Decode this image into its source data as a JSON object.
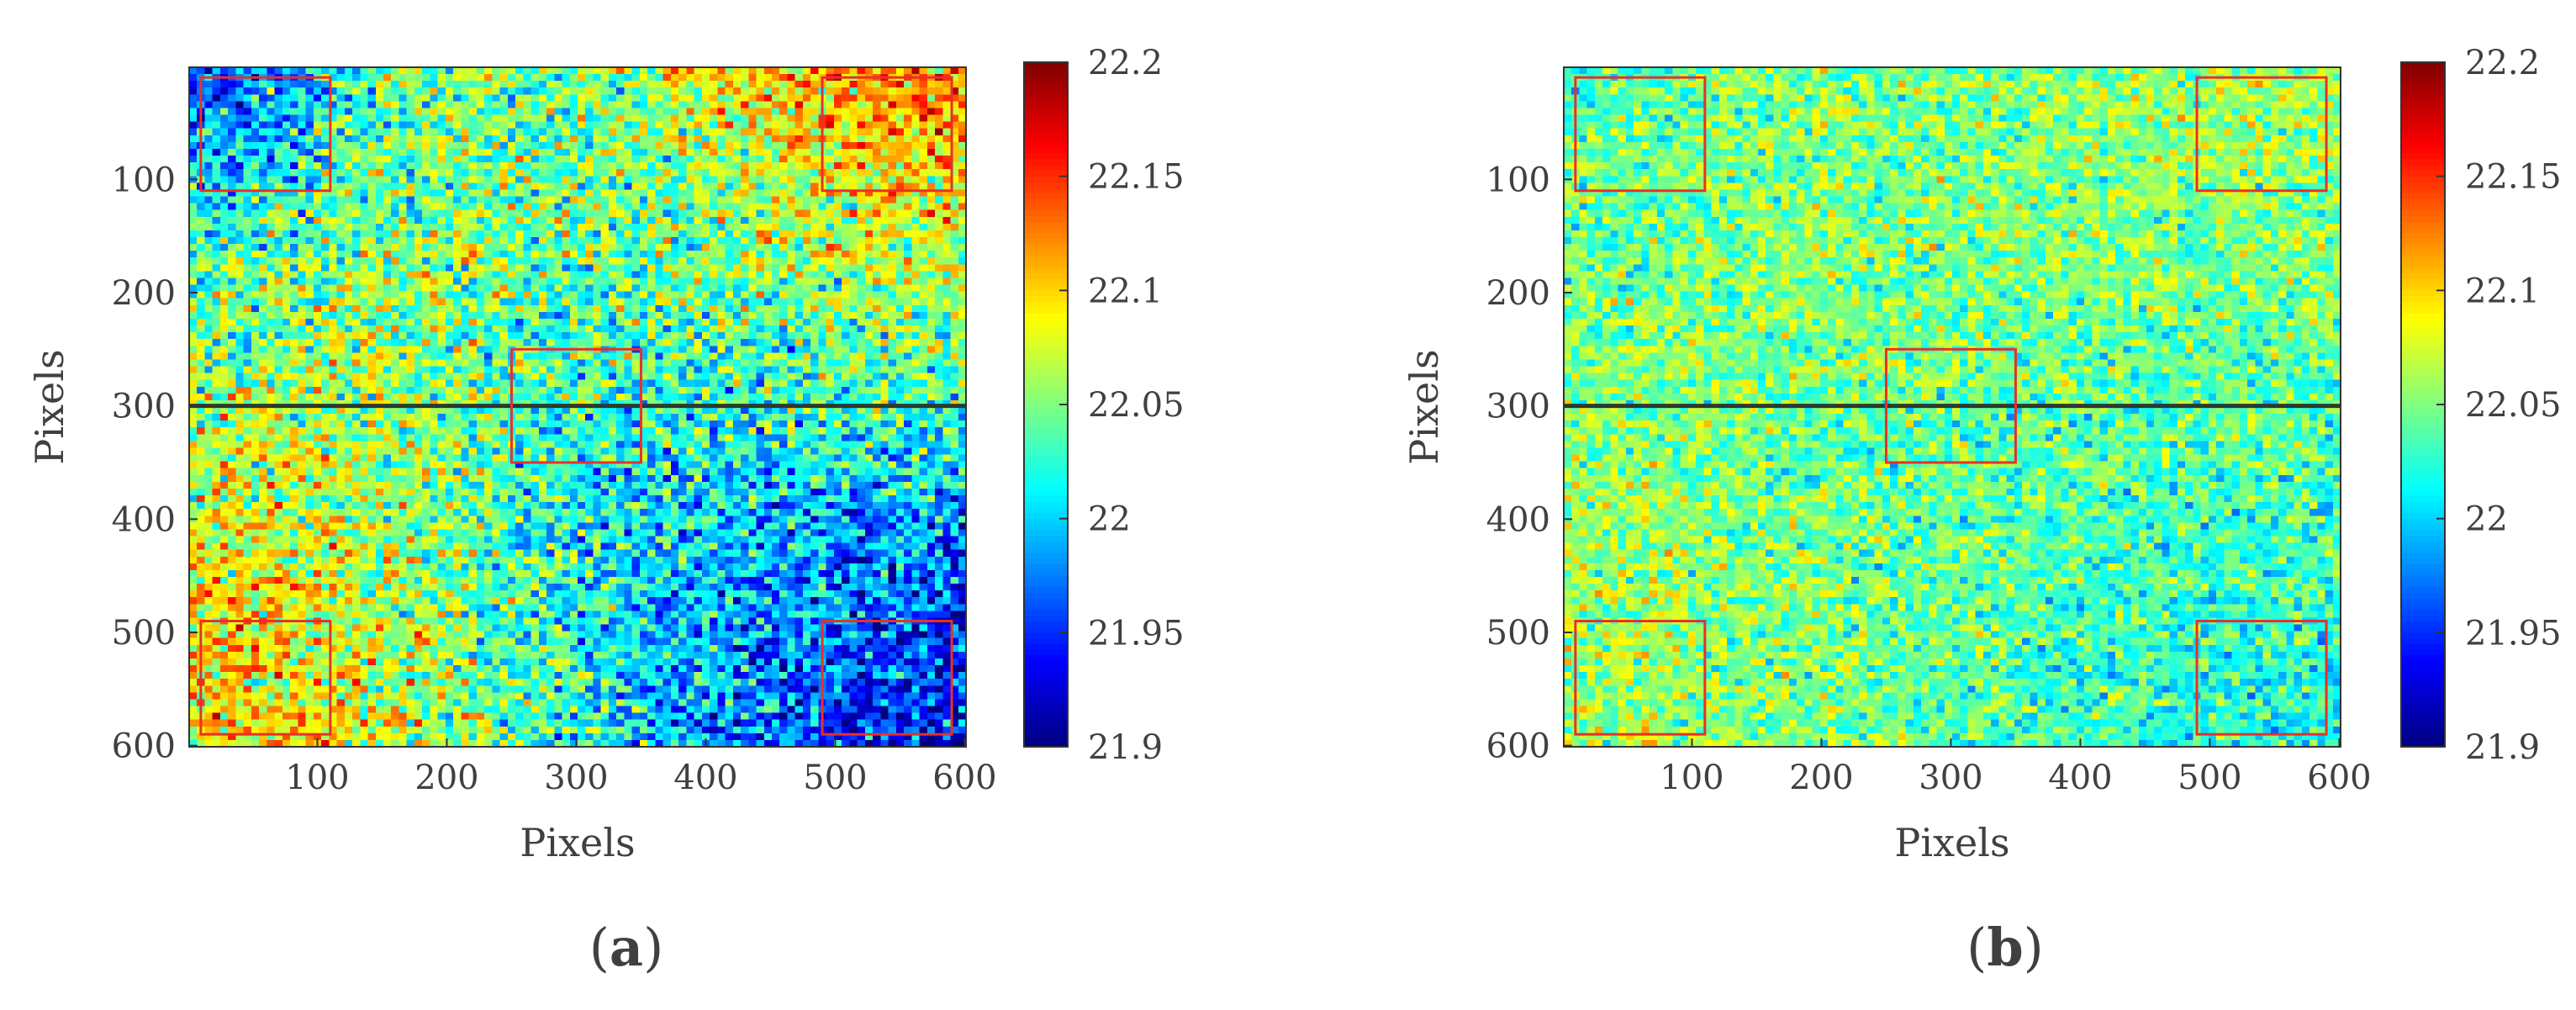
{
  "figure": {
    "panels": [
      {
        "label_open": "(",
        "label": "a",
        "label_close": ")"
      },
      {
        "label_open": "(",
        "label": "b",
        "label_close": ")"
      }
    ]
  },
  "chart_data": [
    {
      "type": "heatmap",
      "panel": "a",
      "title": "",
      "xlabel": "Pixels",
      "ylabel": "Pixels",
      "xlim": [
        1,
        600
      ],
      "ylim": [
        1,
        600
      ],
      "y_reversed": true,
      "xticks": [
        100,
        200,
        300,
        400,
        500,
        600
      ],
      "yticks": [
        100,
        200,
        300,
        400,
        500,
        600
      ],
      "grid": false,
      "colormap": "jet",
      "colorbar": {
        "min": 21.9,
        "max": 22.2,
        "ticks": [
          "21.9",
          "21.95",
          "22",
          "22.05",
          "22.1",
          "22.15",
          "22.2"
        ]
      },
      "approx_grid_values": [
        [
          21.96,
          21.98,
          22.03,
          22.06,
          22.04,
          22.06,
          22.09,
          22.11,
          22.12,
          22.13
        ],
        [
          21.98,
          22.0,
          22.03,
          22.05,
          22.04,
          22.05,
          22.07,
          22.09,
          22.1,
          22.11
        ],
        [
          22.02,
          22.03,
          22.05,
          22.05,
          22.05,
          22.04,
          22.05,
          22.07,
          22.08,
          22.09
        ],
        [
          22.04,
          22.05,
          22.06,
          22.05,
          22.04,
          22.04,
          22.04,
          22.05,
          22.06,
          22.06
        ],
        [
          22.05,
          22.06,
          22.06,
          22.05,
          22.04,
          22.03,
          22.03,
          22.03,
          22.04,
          22.04
        ],
        [
          22.07,
          22.07,
          22.06,
          22.05,
          22.03,
          22.02,
          22.01,
          22.01,
          22.01,
          22.01
        ],
        [
          22.08,
          22.08,
          22.07,
          22.05,
          22.03,
          22.01,
          22.0,
          21.99,
          21.99,
          21.98
        ],
        [
          22.09,
          22.09,
          22.07,
          22.05,
          22.03,
          22.01,
          21.99,
          21.98,
          21.97,
          21.96
        ],
        [
          22.1,
          22.09,
          22.08,
          22.05,
          22.03,
          22.01,
          21.99,
          21.97,
          21.95,
          21.94
        ],
        [
          22.1,
          22.1,
          22.08,
          22.06,
          22.03,
          22.01,
          21.98,
          21.96,
          21.94,
          21.93
        ]
      ],
      "noise_amplitude": 0.05,
      "horizontal_line_y": 300,
      "regions": [
        {
          "x": [
            10,
            110
          ],
          "y": [
            10,
            110
          ]
        },
        {
          "x": [
            490,
            590
          ],
          "y": [
            10,
            110
          ]
        },
        {
          "x": [
            250,
            350
          ],
          "y": [
            250,
            350
          ]
        },
        {
          "x": [
            10,
            110
          ],
          "y": [
            490,
            590
          ]
        },
        {
          "x": [
            490,
            590
          ],
          "y": [
            490,
            590
          ]
        }
      ]
    },
    {
      "type": "heatmap",
      "panel": "b",
      "title": "",
      "xlabel": "Pixels",
      "ylabel": "Pixels",
      "xlim": [
        1,
        600
      ],
      "ylim": [
        1,
        600
      ],
      "y_reversed": true,
      "xticks": [
        100,
        200,
        300,
        400,
        500,
        600
      ],
      "yticks": [
        100,
        200,
        300,
        400,
        500,
        600
      ],
      "grid": false,
      "colormap": "jet",
      "colorbar": {
        "min": 21.9,
        "max": 22.2,
        "ticks": [
          "21.9",
          "21.95",
          "22",
          "22.05",
          "22.1",
          "22.15",
          "22.2"
        ]
      },
      "approx_grid_values": [
        [
          22.03,
          22.04,
          22.05,
          22.05,
          22.05,
          22.05,
          22.06,
          22.06,
          22.06,
          22.06
        ],
        [
          22.04,
          22.04,
          22.05,
          22.05,
          22.05,
          22.05,
          22.05,
          22.06,
          22.06,
          22.06
        ],
        [
          22.04,
          22.04,
          22.05,
          22.05,
          22.05,
          22.05,
          22.05,
          22.05,
          22.05,
          22.05
        ],
        [
          22.05,
          22.05,
          22.05,
          22.05,
          22.05,
          22.05,
          22.05,
          22.05,
          22.05,
          22.05
        ],
        [
          22.05,
          22.05,
          22.05,
          22.05,
          22.05,
          22.04,
          22.04,
          22.04,
          22.04,
          22.04
        ],
        [
          22.05,
          22.05,
          22.05,
          22.04,
          22.04,
          22.04,
          22.04,
          22.04,
          22.04,
          22.04
        ],
        [
          22.06,
          22.06,
          22.05,
          22.05,
          22.04,
          22.04,
          22.04,
          22.03,
          22.03,
          22.03
        ],
        [
          22.06,
          22.06,
          22.05,
          22.05,
          22.04,
          22.04,
          22.03,
          22.03,
          22.03,
          22.03
        ],
        [
          22.06,
          22.06,
          22.05,
          22.05,
          22.04,
          22.04,
          22.03,
          22.03,
          22.02,
          22.02
        ],
        [
          22.06,
          22.06,
          22.05,
          22.05,
          22.04,
          22.03,
          22.03,
          22.02,
          22.02,
          22.02
        ]
      ],
      "noise_amplitude": 0.035,
      "horizontal_line_y": 300,
      "regions": [
        {
          "x": [
            10,
            110
          ],
          "y": [
            10,
            110
          ]
        },
        {
          "x": [
            490,
            590
          ],
          "y": [
            10,
            110
          ]
        },
        {
          "x": [
            250,
            350
          ],
          "y": [
            250,
            350
          ]
        },
        {
          "x": [
            10,
            110
          ],
          "y": [
            490,
            590
          ]
        },
        {
          "x": [
            490,
            590
          ],
          "y": [
            490,
            590
          ]
        }
      ]
    }
  ],
  "colors": {
    "region_box": "#e8302a",
    "horizontal_line": "#2b3a2e",
    "axis": "#333333",
    "text": "#404040"
  }
}
